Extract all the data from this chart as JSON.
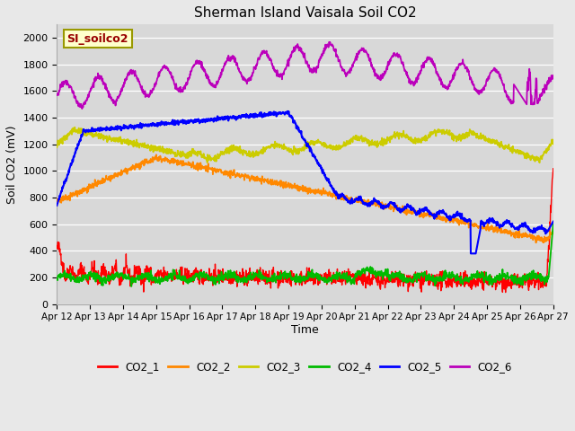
{
  "title": "Sherman Island Vaisala Soil CO2",
  "ylabel": "Soil CO2 (mV)",
  "xlabel": "Time",
  "annotation": "SI_soilco2",
  "fig_bg_color": "#e8e8e8",
  "plot_bg_color": "#d8d8d8",
  "ylim": [
    0,
    2100
  ],
  "yticks": [
    0,
    200,
    400,
    600,
    800,
    1000,
    1200,
    1400,
    1600,
    1800,
    2000
  ],
  "xtick_labels": [
    "Apr 12",
    "Apr 13",
    "Apr 14",
    "Apr 15",
    "Apr 16",
    "Apr 17",
    "Apr 18",
    "Apr 19",
    "Apr 20",
    "Apr 21",
    "Apr 22",
    "Apr 23",
    "Apr 24",
    "Apr 25",
    "Apr 26",
    "Apr 27"
  ],
  "colors": {
    "CO2_1": "#ff0000",
    "CO2_2": "#ff8800",
    "CO2_3": "#cccc00",
    "CO2_4": "#00bb00",
    "CO2_5": "#0000ff",
    "CO2_6": "#bb00bb"
  },
  "legend_labels": [
    "CO2_1",
    "CO2_2",
    "CO2_3",
    "CO2_4",
    "CO2_5",
    "CO2_6"
  ]
}
